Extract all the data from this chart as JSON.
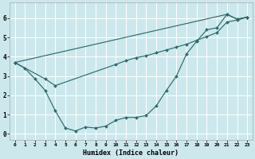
{
  "title": "",
  "xlabel": "Humidex (Indice chaleur)",
  "bg_color": "#cce8ed",
  "grid_color": "#ffffff",
  "line_color": "#2e6b6b",
  "xlim": [
    -0.5,
    23.5
  ],
  "ylim": [
    -0.3,
    6.8
  ],
  "xticks": [
    0,
    1,
    2,
    3,
    4,
    5,
    6,
    7,
    8,
    9,
    10,
    11,
    12,
    13,
    14,
    15,
    16,
    17,
    18,
    19,
    20,
    21,
    22,
    23
  ],
  "yticks": [
    0,
    1,
    2,
    3,
    4,
    5,
    6
  ],
  "line1_x": [
    0,
    1,
    2,
    3,
    4,
    5,
    6,
    7,
    8,
    9,
    10,
    11,
    12,
    13,
    14,
    15,
    16,
    17,
    18,
    19,
    20,
    21,
    22,
    23
  ],
  "line1_y": [
    3.7,
    3.4,
    2.85,
    2.25,
    1.2,
    0.3,
    0.15,
    0.35,
    0.3,
    0.4,
    0.7,
    0.85,
    0.85,
    0.95,
    1.45,
    2.25,
    3.0,
    4.15,
    4.8,
    5.4,
    5.5,
    6.2,
    5.95,
    6.05
  ],
  "line2_x": [
    0,
    3,
    4,
    10,
    11,
    12,
    13,
    14,
    15,
    16,
    17,
    18,
    19,
    20,
    21,
    22,
    23
  ],
  "line2_y": [
    3.7,
    2.85,
    2.5,
    3.6,
    3.8,
    3.95,
    4.05,
    4.2,
    4.35,
    4.5,
    4.65,
    4.85,
    5.05,
    5.25,
    5.8,
    5.9,
    6.05
  ],
  "line3_x": [
    0,
    21,
    22,
    23
  ],
  "line3_y": [
    3.7,
    6.2,
    5.95,
    6.05
  ]
}
